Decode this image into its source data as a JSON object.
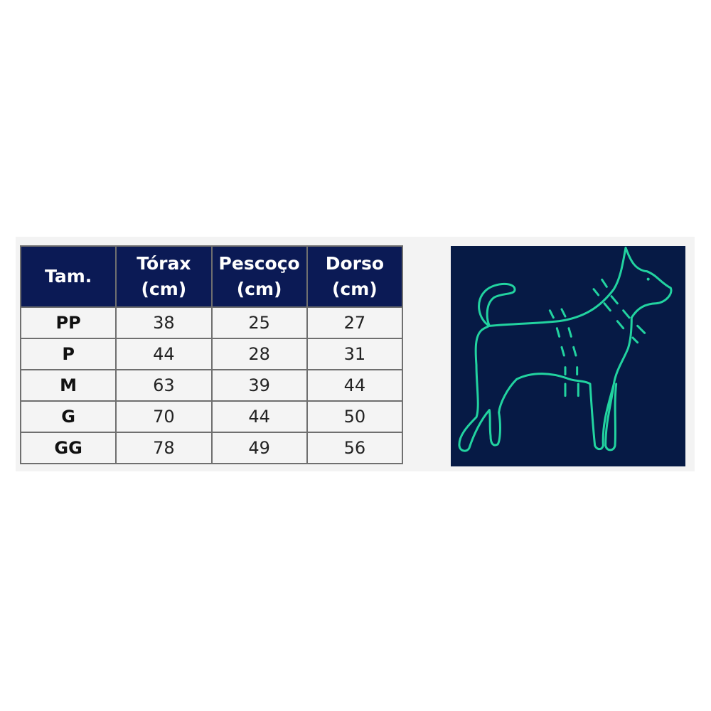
{
  "table": {
    "headers": [
      {
        "line1": "Tam.",
        "line2": ""
      },
      {
        "line1": "Tórax",
        "line2": "(cm)"
      },
      {
        "line1": "Pescoço",
        "line2": "(cm)"
      },
      {
        "line1": "Dorso",
        "line2": "(cm)"
      }
    ],
    "rows": [
      [
        "PP",
        "38",
        "25",
        "27"
      ],
      [
        "P",
        "44",
        "28",
        "31"
      ],
      [
        "M",
        "63",
        "39",
        "44"
      ],
      [
        "G",
        "70",
        "44",
        "50"
      ],
      [
        "GG",
        "78",
        "49",
        "56"
      ]
    ]
  },
  "illustration": {
    "icon": "dog-measurement-icon",
    "background": "#061a45",
    "stroke": "#22d3a0"
  },
  "colors": {
    "header_bg": "#0b1a55",
    "cell_bg": "#f4f4f4"
  }
}
